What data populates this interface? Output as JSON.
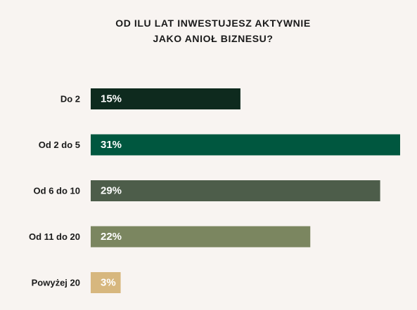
{
  "chart_data": {
    "type": "bar",
    "orientation": "horizontal",
    "title_lines": [
      "OD ILU LAT INWESTUJESZ AKTYWNIE",
      "JAKO ANIOŁ BIZNESU?"
    ],
    "categories": [
      "Do 2",
      "Od 2 do 5",
      "Od 6 do 10",
      "Od 11 do 20",
      "Powyżej 20"
    ],
    "values": [
      15,
      31,
      29,
      22,
      3
    ],
    "value_labels": [
      "15%",
      "31%",
      "29%",
      "22%",
      "3%"
    ],
    "colors": [
      "#0e2a1e",
      "#00573f",
      "#4d5d4a",
      "#7b8660",
      "#d7b77e"
    ],
    "unit": "%",
    "grid": false,
    "legend": "none"
  }
}
